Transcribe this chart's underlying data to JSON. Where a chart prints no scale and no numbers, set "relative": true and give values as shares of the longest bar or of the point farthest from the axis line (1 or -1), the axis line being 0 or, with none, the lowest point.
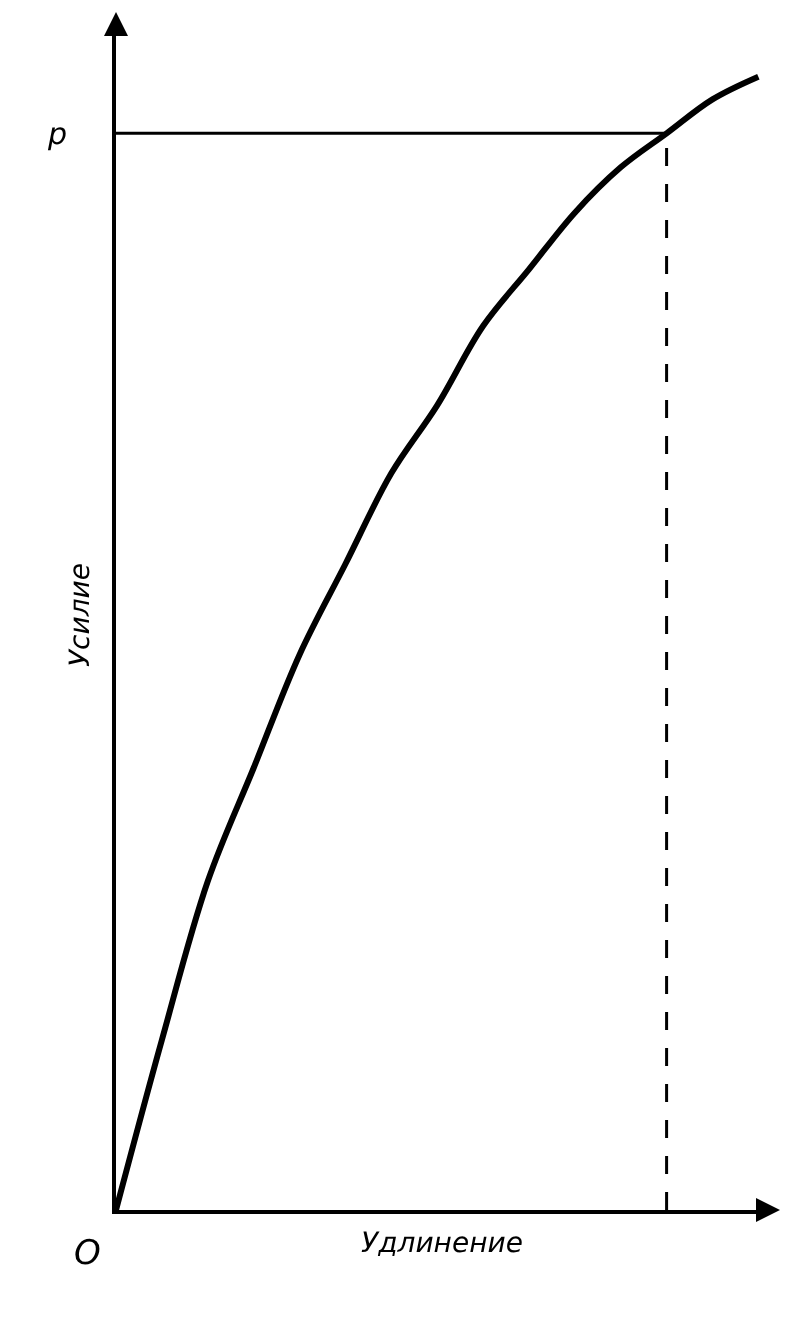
{
  "chart_data": {
    "type": "line",
    "relative": true,
    "xlabel": "Удлинение",
    "ylabel": "Усилие",
    "categories": [
      null,
      null,
      null,
      null,
      null,
      null,
      null,
      null,
      null,
      null,
      null,
      null,
      null,
      null,
      null
    ],
    "series": [
      {
        "color": "#000000",
        "values": [
          0,
          0.15,
          0.29,
          0.39,
          0.49,
          0.57,
          0.65,
          0.71,
          0.78,
          0.83,
          0.88,
          0.92,
          0.95,
          0.98,
          1
        ]
      }
    ],
    "ref_lines": [
      {
        "axis": "y",
        "value": 0.95,
        "label": "p",
        "line_style": "solid"
      }
    ],
    "annotations": [
      "O"
    ],
    "marker": "none",
    "line_style": "solid"
  }
}
